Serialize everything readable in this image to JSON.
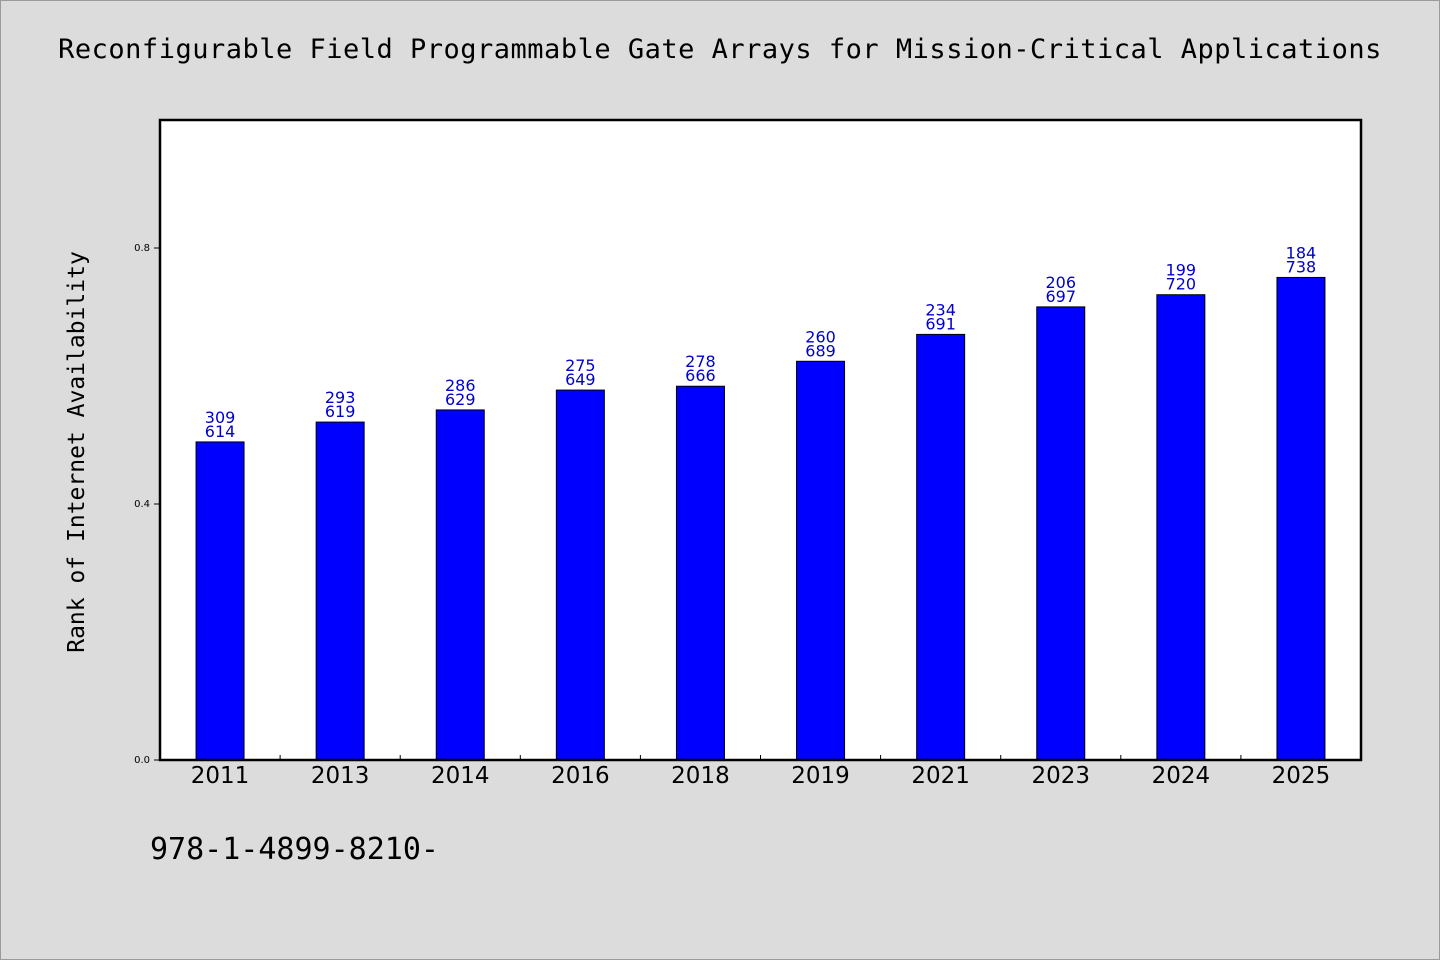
{
  "chart_data": {
    "type": "bar",
    "title": "Reconfigurable Field Programmable Gate Arrays for Mission-Critical Applications",
    "ylabel": "Rank of Internet Availability",
    "xlabel": "",
    "categories": [
      "2011",
      "2013",
      "2014",
      "2016",
      "2018",
      "2019",
      "2021",
      "2023",
      "2024",
      "2025"
    ],
    "values": [
      0.497,
      0.528,
      0.547,
      0.578,
      0.584,
      0.623,
      0.665,
      0.708,
      0.727,
      0.754
    ],
    "label_top": [
      "309",
      "293",
      "286",
      "275",
      "278",
      "260",
      "234",
      "206",
      "199",
      "184"
    ],
    "label_bottom": [
      "614",
      "619",
      "629",
      "649",
      "666",
      "689",
      "691",
      "697",
      "720",
      "738"
    ],
    "ylim": [
      0,
      1.0
    ],
    "yticks": [
      0.0,
      0.4,
      0.8
    ],
    "ytick_labels": [
      "0.0",
      "0.4",
      "0.8"
    ],
    "grid": false,
    "bar_color": "#0000ff",
    "label_color": "#0000cc"
  },
  "footer": {
    "code": "978-1-4899-8210-"
  }
}
